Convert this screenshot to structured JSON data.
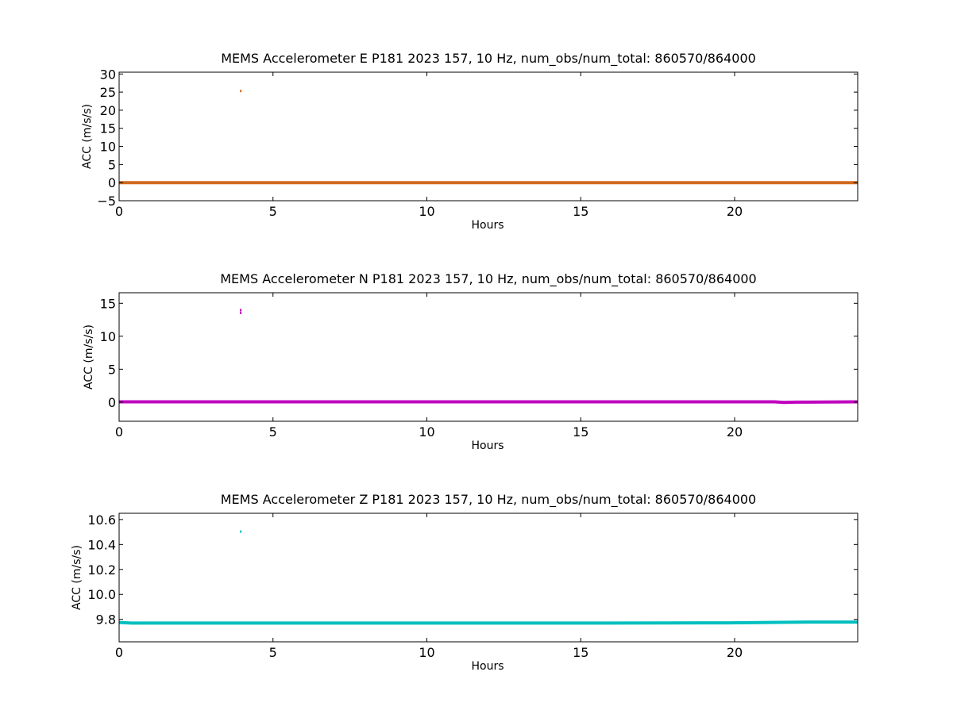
{
  "chart_data": [
    {
      "type": "line",
      "title": "MEMS Accelerometer E P181 2023 157, 10 Hz, num_obs/num_total: 860570/864000",
      "xlabel": "Hours",
      "ylabel": "ACC (m/s/s)",
      "xlim": [
        0,
        24
      ],
      "ylim": [
        -5,
        30.5
      ],
      "xticks": [
        0,
        5,
        10,
        15,
        20
      ],
      "xtick_labels": [
        "0",
        "5",
        "10",
        "15",
        "20"
      ],
      "yticks": [
        -5,
        0,
        5,
        10,
        15,
        20,
        25,
        30
      ],
      "ytick_labels": [
        "−5",
        "0",
        "5",
        "10",
        "15",
        "20",
        "25",
        "30"
      ],
      "grid": false,
      "color": "#d2691e",
      "baseline": {
        "x": [
          0,
          24
        ],
        "y": [
          0.0,
          0.0
        ]
      },
      "outliers": [
        {
          "x": 3.95,
          "y": 25.2
        }
      ]
    },
    {
      "type": "line",
      "title": "MEMS Accelerometer N P181 2023 157, 10 Hz, num_obs/num_total: 860570/864000",
      "xlabel": "Hours",
      "ylabel": "ACC (m/s/s)",
      "xlim": [
        0,
        24
      ],
      "ylim": [
        -2.9,
        16.6
      ],
      "xticks": [
        0,
        5,
        10,
        15,
        20
      ],
      "xtick_labels": [
        "0",
        "5",
        "10",
        "15",
        "20"
      ],
      "yticks": [
        0,
        5,
        10,
        15
      ],
      "ytick_labels": [
        "0",
        "5",
        "10",
        "15"
      ],
      "grid": false,
      "color": "#bf00bf",
      "baseline": {
        "x": [
          0,
          21.3,
          21.6,
          22.0,
          24
        ],
        "y": [
          0.05,
          0.05,
          -0.05,
          0.0,
          0.05
        ]
      },
      "outliers": [
        {
          "x": 3.95,
          "y": 13.9
        },
        {
          "x": 3.95,
          "y": 13.5
        }
      ]
    },
    {
      "type": "line",
      "title": "MEMS Accelerometer Z P181 2023 157, 10 Hz, num_obs/num_total: 860570/864000",
      "xlabel": "Hours",
      "ylabel": "ACC (m/s/s)",
      "xlim": [
        0,
        24
      ],
      "ylim": [
        9.62,
        10.65
      ],
      "xticks": [
        0,
        5,
        10,
        15,
        20
      ],
      "xtick_labels": [
        "0",
        "5",
        "10",
        "15",
        "20"
      ],
      "yticks": [
        9.8,
        10.0,
        10.2,
        10.4,
        10.6
      ],
      "ytick_labels": [
        "9.8",
        "10.0",
        "10.2",
        "10.4",
        "10.6"
      ],
      "grid": false,
      "color": "#00bfbf",
      "baseline": {
        "x": [
          0,
          0.4,
          16.0,
          19.8,
          22.5,
          24
        ],
        "y": [
          9.775,
          9.77,
          9.77,
          9.772,
          9.778,
          9.778
        ]
      },
      "outliers": [
        {
          "x": 3.95,
          "y": 10.5
        }
      ]
    }
  ]
}
